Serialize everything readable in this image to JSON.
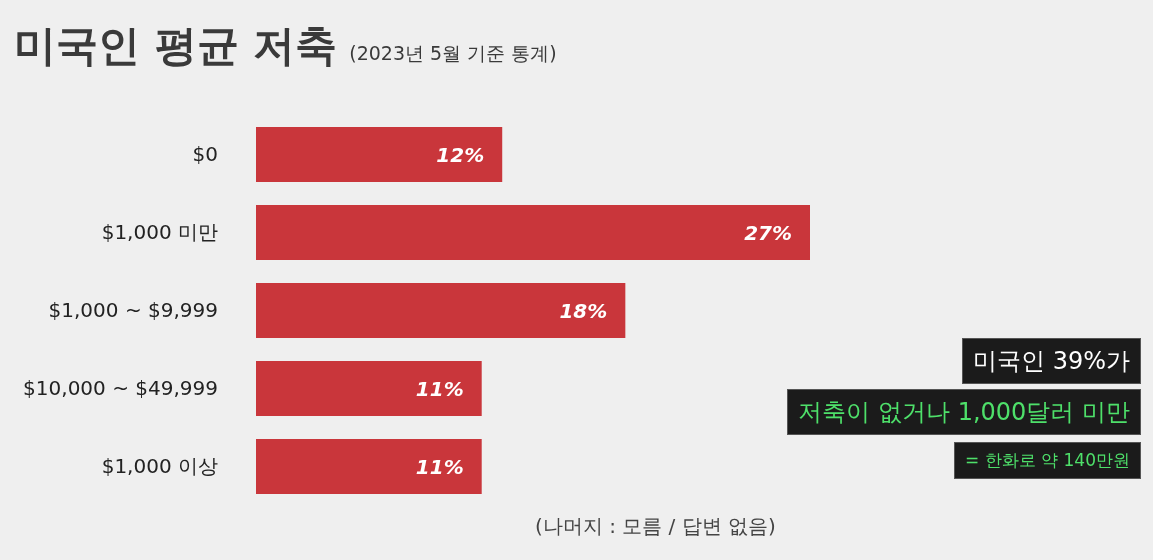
{
  "chart_data": {
    "type": "bar",
    "orientation": "horizontal",
    "title": "미국인 평균 저축",
    "subtitle": "(2023년 5월 기준 통계)",
    "categories": [
      "$0",
      "$1,000 미만",
      "$1,000 ~ $9,999",
      "$10,000 ~ $49,999",
      "$1,000 이상"
    ],
    "values": [
      12,
      27,
      18,
      11,
      11
    ],
    "color": "#c9363b",
    "value_labels": [
      "12%",
      "27%",
      "18%",
      "11%",
      "11%"
    ],
    "annotations": [
      "미국인 39%가",
      "저축이 없거나 1,000달러 미만",
      "= 한화로 약 140만원",
      "(나머지 : 모름 / 답변 없음)"
    ],
    "grid": false,
    "legend": false
  }
}
